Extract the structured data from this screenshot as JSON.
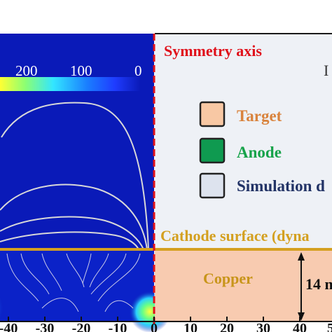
{
  "colorbar": {
    "ticks": [
      "200",
      "100",
      "0"
    ],
    "gradient": [
      "#ffff33",
      "#8cff73",
      "#33e6ff",
      "#1a7fff",
      "#1f3cff",
      "#0a1ab8"
    ]
  },
  "labels": {
    "symmetry_axis": "Symmetry axis",
    "cathode_surface": "Cathode surface (dyna",
    "copper": "Copper",
    "dimension": "14 m",
    "legend_partial_mark": "I"
  },
  "legend": [
    {
      "label": "Target",
      "color": "#d9833d",
      "fill": "#f8c8a4"
    },
    {
      "label": "Anode",
      "color": "#17a34a",
      "fill": "#0f9a50"
    },
    {
      "label": "Simulation d",
      "color": "#223366",
      "fill": "#dde3ee"
    }
  ],
  "x_axis": {
    "ticks": [
      "-40",
      "-30",
      "-20",
      "-10",
      "0",
      "10",
      "20",
      "30",
      "40",
      "5"
    ]
  },
  "colors": {
    "field_background": "#0a1ab8",
    "right_panel": "#eef1f6",
    "symmetry_line": "#e0101a",
    "cathode_line": "#d4a020",
    "copper_fill": "#f8cbb0",
    "copper_text": "#c8951a",
    "contour": "#d8d8d8",
    "symmetry_text": "#e0101a",
    "cathode_text": "#d4a020"
  }
}
